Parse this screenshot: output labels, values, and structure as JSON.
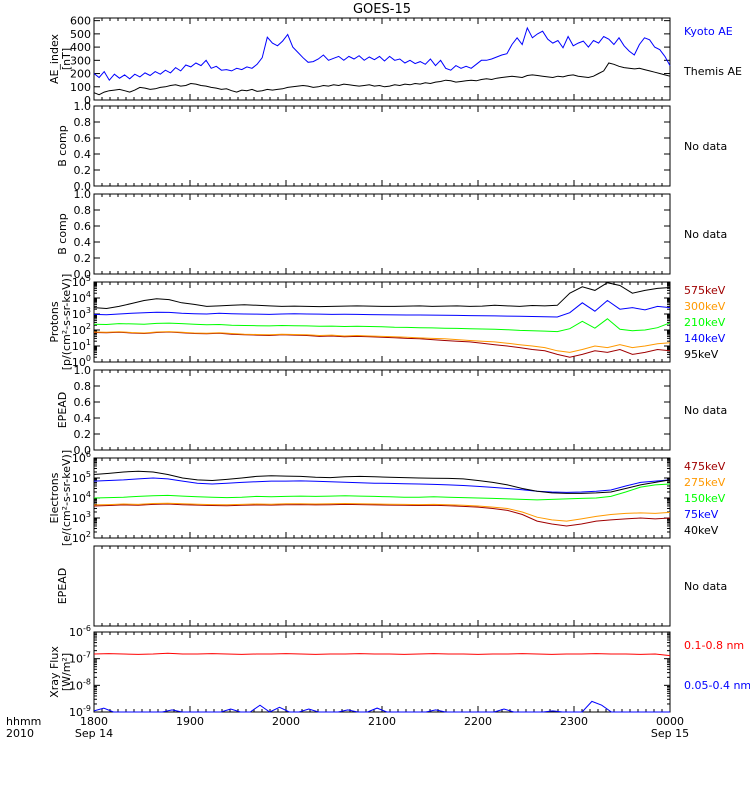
{
  "title": "GOES-15",
  "time_axis": {
    "row_label_1": "hhmm",
    "row_label_2": "2010",
    "ticks": [
      "1800",
      "1900",
      "2000",
      "2100",
      "2200",
      "2300",
      "0000"
    ],
    "date_left": "Sep 14",
    "date_right": "Sep 15"
  },
  "chart_data": [
    {
      "type": "line",
      "id": "ae",
      "ylabel": "AE_index\n[nT]",
      "ylim": [
        0,
        620
      ],
      "yticks": [
        "0",
        "100",
        "200",
        "300",
        "400",
        "500",
        "600"
      ],
      "ytick_values": [
        0,
        100,
        200,
        300,
        400,
        500,
        600
      ],
      "series": [
        {
          "name": "Kyoto AE",
          "color": "#0000ff",
          "values": [
            200,
            170,
            215,
            150,
            195,
            165,
            190,
            160,
            195,
            175,
            205,
            185,
            215,
            195,
            225,
            205,
            245,
            220,
            265,
            250,
            280,
            260,
            300,
            240,
            255,
            225,
            230,
            220,
            240,
            230,
            250,
            240,
            270,
            320,
            475,
            430,
            410,
            445,
            495,
            400,
            360,
            320,
            285,
            290,
            310,
            340,
            300,
            315,
            330,
            300,
            330,
            310,
            335,
            300,
            325,
            305,
            330,
            295,
            330,
            300,
            310,
            280,
            300,
            275,
            290,
            270,
            310,
            260,
            300,
            240,
            225,
            260,
            240,
            255,
            240,
            270,
            300,
            300,
            310,
            325,
            340,
            350,
            420,
            470,
            420,
            545,
            470,
            500,
            520,
            460,
            430,
            450,
            395,
            480,
            410,
            430,
            445,
            400,
            450,
            430,
            480,
            460,
            420,
            470,
            410,
            370,
            340,
            420,
            470,
            455,
            400,
            380,
            330,
            260
          ]
        },
        {
          "name": "Themis AE",
          "color": "#000000",
          "values": [
            55,
            40,
            60,
            70,
            75,
            80,
            70,
            60,
            75,
            95,
            90,
            80,
            85,
            95,
            100,
            110,
            115,
            105,
            110,
            125,
            120,
            110,
            105,
            95,
            90,
            80,
            85,
            70,
            60,
            75,
            70,
            80,
            65,
            70,
            80,
            75,
            80,
            85,
            95,
            100,
            105,
            110,
            105,
            95,
            100,
            110,
            105,
            115,
            110,
            120,
            115,
            110,
            105,
            110,
            115,
            105,
            110,
            100,
            105,
            115,
            110,
            120,
            115,
            125,
            120,
            130,
            125,
            135,
            140,
            150,
            145,
            135,
            140,
            145,
            150,
            145,
            155,
            160,
            155,
            165,
            170,
            175,
            180,
            175,
            170,
            185,
            190,
            185,
            180,
            175,
            170,
            180,
            175,
            185,
            190,
            180,
            175,
            170,
            180,
            200,
            220,
            280,
            270,
            255,
            245,
            240,
            235,
            240,
            230,
            220,
            210,
            200,
            190,
            180
          ]
        }
      ]
    },
    {
      "type": "line",
      "id": "bcomp1",
      "ylabel": "B comp",
      "ylim": [
        0,
        1.0
      ],
      "yticks": [
        "0.0",
        "0.2",
        "0.4",
        "0.6",
        "0.8",
        "1.0"
      ],
      "ytick_values": [
        0,
        0.2,
        0.4,
        0.6,
        0.8,
        1.0
      ],
      "note": "No data",
      "series": []
    },
    {
      "type": "line",
      "id": "bcomp2",
      "ylabel": "B comp",
      "ylim": [
        0,
        1.0
      ],
      "yticks": [
        "0.0",
        "0.2",
        "0.4",
        "0.6",
        "0.8",
        "1.0"
      ],
      "ytick_values": [
        0,
        0.2,
        0.4,
        0.6,
        0.8,
        1.0
      ],
      "note": "No data",
      "series": []
    },
    {
      "type": "line",
      "id": "protons",
      "log_scale": true,
      "ylabel": "Protons\n[p/(cm²-s-sr-keV)]",
      "ylim": [
        1,
        100000
      ],
      "ytick_values": [
        1,
        10,
        100,
        1000,
        10000,
        100000
      ],
      "yticks_mantissa": [
        "10",
        "10",
        "10",
        "10",
        "10",
        "10"
      ],
      "yticks_exponent": [
        "0",
        "1",
        "2",
        "3",
        "4",
        "5"
      ],
      "series": [
        {
          "name": "575keV",
          "color": "#a00000",
          "values": [
            70,
            68,
            72,
            65,
            60,
            70,
            75,
            68,
            60,
            58,
            62,
            55,
            50,
            48,
            45,
            50,
            48,
            45,
            40,
            42,
            38,
            40,
            38,
            35,
            33,
            30,
            28,
            25,
            22,
            20,
            18,
            15,
            12,
            10,
            8,
            6,
            5,
            3,
            2,
            3,
            5,
            4,
            6,
            3,
            4,
            6,
            5
          ]
        },
        {
          "name": "300keV",
          "color": "#ff9900",
          "values": [
            75,
            72,
            78,
            70,
            65,
            75,
            80,
            72,
            65,
            62,
            68,
            60,
            55,
            52,
            50,
            55,
            52,
            50,
            45,
            48,
            42,
            45,
            42,
            40,
            38,
            35,
            32,
            30,
            28,
            25,
            22,
            20,
            18,
            15,
            12,
            10,
            8,
            5,
            4,
            6,
            10,
            8,
            12,
            8,
            10,
            14,
            16
          ]
        },
        {
          "name": "210keV",
          "color": "#00ff00",
          "values": [
            230,
            220,
            250,
            240,
            230,
            260,
            270,
            250,
            230,
            210,
            220,
            200,
            190,
            185,
            180,
            190,
            185,
            180,
            170,
            175,
            165,
            170,
            165,
            160,
            150,
            145,
            140,
            135,
            130,
            125,
            120,
            115,
            110,
            105,
            95,
            90,
            85,
            80,
            120,
            350,
            130,
            500,
            110,
            90,
            100,
            140,
            280
          ]
        },
        {
          "name": "140keV",
          "color": "#0000ff",
          "values": [
            950,
            900,
            1000,
            1100,
            1200,
            1300,
            1250,
            1100,
            1050,
            1000,
            1100,
            1050,
            1000,
            980,
            950,
            1000,
            1050,
            1000,
            980,
            950,
            960,
            940,
            920,
            900,
            880,
            870,
            860,
            850,
            840,
            820,
            800,
            780,
            760,
            740,
            720,
            700,
            680,
            650,
            1200,
            5000,
            1500,
            7000,
            2000,
            2500,
            1800,
            3000,
            2500
          ]
        },
        {
          "name": "95keV",
          "color": "#000000",
          "values": [
            2500,
            2200,
            3000,
            4500,
            7000,
            9000,
            8000,
            5000,
            4000,
            3000,
            3200,
            3500,
            3800,
            3500,
            3200,
            3000,
            3100,
            3000,
            2900,
            3000,
            3100,
            3200,
            3100,
            3000,
            3000,
            3100,
            3200,
            3000,
            3100,
            3200,
            3000,
            3100,
            3500,
            3200,
            3000,
            3400,
            3200,
            3500,
            20000,
            50000,
            30000,
            90000,
            60000,
            20000,
            30000,
            40000,
            45000
          ]
        }
      ]
    },
    {
      "type": "line",
      "id": "epead1",
      "ylabel": "EPEAD",
      "ylim": [
        0,
        1.0
      ],
      "yticks": [
        "0.0",
        "0.2",
        "0.4",
        "0.6",
        "0.8",
        "1.0"
      ],
      "ytick_values": [
        0,
        0.2,
        0.4,
        0.6,
        0.8,
        1.0
      ],
      "note": "No data",
      "series": []
    },
    {
      "type": "line",
      "id": "electrons",
      "log_scale": true,
      "ylabel": "Electrons\n[e/(cm²-s-sr-keV)]",
      "ylim": [
        100,
        1000000
      ],
      "ytick_values": [
        100,
        1000,
        10000,
        100000,
        1000000
      ],
      "yticks_mantissa": [
        "10",
        "10",
        "10",
        "10",
        "10"
      ],
      "yticks_exponent": [
        "2",
        "3",
        "4",
        "5",
        "6"
      ],
      "series": [
        {
          "name": "475keV",
          "color": "#a00000",
          "values": [
            4000,
            4200,
            4500,
            4300,
            4800,
            5000,
            4600,
            4400,
            4200,
            4100,
            4300,
            4500,
            4400,
            4600,
            4700,
            4500,
            4600,
            4800,
            4700,
            4500,
            4400,
            4300,
            4200,
            4300,
            4100,
            3800,
            3500,
            3000,
            2400,
            1500,
            700,
            500,
            400,
            500,
            700,
            800,
            900,
            1000,
            900,
            1000
          ]
        },
        {
          "name": "275keV",
          "color": "#ff9900",
          "values": [
            4500,
            4700,
            5000,
            4800,
            5300,
            5500,
            5100,
            4900,
            4700,
            4600,
            4800,
            5000,
            4900,
            5100,
            5200,
            5000,
            5100,
            5300,
            5200,
            5000,
            4900,
            4800,
            4700,
            4800,
            4600,
            4300,
            4000,
            3500,
            3000,
            2000,
            1100,
            800,
            700,
            900,
            1200,
            1500,
            1700,
            1800,
            1700,
            1900
          ]
        },
        {
          "name": "150keV",
          "color": "#00ff00",
          "values": [
            10000,
            10500,
            11000,
            12000,
            13000,
            13500,
            12500,
            11500,
            11000,
            10500,
            11000,
            12000,
            11500,
            12000,
            12500,
            12000,
            12500,
            13000,
            12500,
            12000,
            11500,
            11000,
            11000,
            11500,
            11000,
            10500,
            10000,
            9500,
            9000,
            8500,
            8000,
            8500,
            9000,
            9500,
            10000,
            12000,
            20000,
            35000,
            45000,
            50000
          ]
        },
        {
          "name": "75keV",
          "color": "#0000ff",
          "values": [
            70000,
            75000,
            80000,
            90000,
            100000,
            90000,
            70000,
            55000,
            50000,
            55000,
            60000,
            65000,
            70000,
            70000,
            72000,
            68000,
            65000,
            62000,
            58000,
            55000,
            54000,
            52000,
            50000,
            48000,
            45000,
            42000,
            38000,
            34000,
            30000,
            26000,
            22000,
            20000,
            19000,
            20000,
            22000,
            25000,
            40000,
            60000,
            70000,
            80000
          ]
        },
        {
          "name": "40keV",
          "color": "#000000",
          "values": [
            150000,
            170000,
            200000,
            220000,
            200000,
            150000,
            100000,
            80000,
            75000,
            85000,
            100000,
            120000,
            130000,
            125000,
            120000,
            110000,
            105000,
            115000,
            120000,
            115000,
            110000,
            105000,
            100000,
            98000,
            96000,
            90000,
            75000,
            60000,
            45000,
            30000,
            22000,
            18000,
            17000,
            17000,
            18000,
            20000,
            30000,
            45000,
            60000,
            80000
          ]
        }
      ]
    },
    {
      "type": "line",
      "id": "epead2",
      "ylabel": "EPEAD",
      "ylim": [
        0,
        1.0
      ],
      "yticks": [],
      "ytick_values": [],
      "note": "No data",
      "series": []
    },
    {
      "type": "line",
      "id": "xray",
      "log_scale": true,
      "ylabel": "Xray Flux\n[W/m²]",
      "ylim": [
        1e-09,
        1e-06
      ],
      "ytick_values": [
        1e-09,
        1e-08,
        1e-07,
        1e-06
      ],
      "yticks_mantissa": [
        "10",
        "10",
        "10",
        "10"
      ],
      "yticks_exponent": [
        "-9",
        "-8",
        "-7",
        "-6"
      ],
      "series": [
        {
          "name": "0.1-0.8 nm",
          "color": "#ff0000",
          "values": [
            1.5e-07,
            1.55e-07,
            1.5e-07,
            1.45e-07,
            1.5e-07,
            1.6e-07,
            1.5e-07,
            1.5e-07,
            1.55e-07,
            1.5e-07,
            1.45e-07,
            1.5e-07,
            1.5e-07,
            1.55e-07,
            1.5e-07,
            1.45e-07,
            1.5e-07,
            1.5e-07,
            1.55e-07,
            1.5e-07,
            1.5e-07,
            1.45e-07,
            1.5e-07,
            1.55e-07,
            1.5e-07,
            1.5e-07,
            1.45e-07,
            1.5e-07,
            1.5e-07,
            1.55e-07,
            1.5e-07,
            1.45e-07,
            1.5e-07,
            1.5e-07,
            1.55e-07,
            1.5e-07,
            1.5e-07,
            1.45e-07,
            1.5e-07,
            1.3e-07
          ]
        },
        {
          "name": "0.05-0.4 nm",
          "color": "#0000ff",
          "values": [
            1.1e-09,
            1.4e-09,
            1e-09,
            1e-09,
            1e-09,
            1e-09,
            1e-09,
            1e-09,
            1.2e-09,
            1e-09,
            1e-09,
            1e-09,
            1e-09,
            1e-09,
            1.3e-09,
            1e-09,
            1e-09,
            1.8e-09,
            1e-09,
            1.5e-09,
            1e-09,
            1e-09,
            1.3e-09,
            1e-09,
            1e-09,
            1e-09,
            1.2e-09,
            1e-09,
            1e-09,
            1.4e-09,
            1e-09,
            1e-09,
            1e-09,
            1e-09,
            1e-09,
            1.2e-09,
            1e-09,
            1e-09,
            1e-09,
            1e-09,
            1e-09,
            1e-09,
            1.3e-09,
            1e-09,
            1e-09,
            1e-09,
            1e-09,
            1.1e-09,
            1e-09,
            1e-09,
            1e-09,
            2.5e-09,
            1.8e-09,
            1e-09,
            1e-09,
            1e-09,
            1e-09,
            1e-09,
            1e-09,
            1e-09
          ]
        }
      ]
    }
  ]
}
